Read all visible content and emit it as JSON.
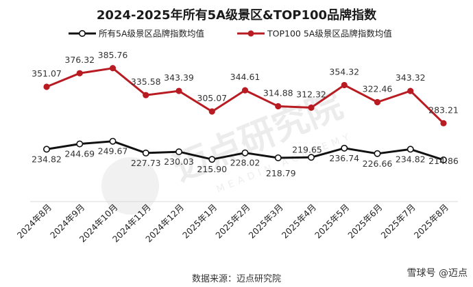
{
  "chart_data": {
    "type": "line",
    "title": "2024-2025年所有5A级景区&TOP100品牌指数",
    "categories": [
      "2024年8月",
      "2024年9月",
      "2024年10月",
      "2024年11月",
      "2024年12月",
      "2025年1月",
      "2025年2月",
      "2025年3月",
      "2025年4月",
      "2025年5月",
      "2025年6月",
      "2025年7月",
      "2025年8月"
    ],
    "series": [
      {
        "name": "所有5A级景区品牌指数均值",
        "color": "#111111",
        "values": [
          234.82,
          244.69,
          249.67,
          227.73,
          230.03,
          215.9,
          228.02,
          218.79,
          219.65,
          236.74,
          226.66,
          234.82,
          214.86
        ],
        "labels": [
          "234.82",
          "244.69",
          "249.67",
          "227.73",
          "230.03",
          "215.90",
          "228.02",
          "218.79",
          "219.65",
          "236.74",
          "226.66",
          "234.82",
          "214.86"
        ]
      },
      {
        "name": "TOP100 5A级景区品牌指数均值",
        "color": "#b81c22",
        "values": [
          351.07,
          376.32,
          385.76,
          335.58,
          343.39,
          305.07,
          344.61,
          314.88,
          312.32,
          354.32,
          322.46,
          343.32,
          283.21
        ],
        "labels": [
          "351.07",
          "376.32",
          "385.76",
          "335.58",
          "343.39",
          "305.07",
          "344.61",
          "314.88",
          "312.32",
          "354.32",
          "322.46",
          "343.32",
          "283.21"
        ]
      }
    ],
    "ylim": [
      80,
      500
    ],
    "grid": false,
    "legend": "top",
    "source": "数据来源：迈点研究院"
  },
  "watermark": {
    "text": "迈点研究院",
    "subtext": "MEADIN ACADEMY"
  },
  "corner_mark": "雪球号 @迈点"
}
